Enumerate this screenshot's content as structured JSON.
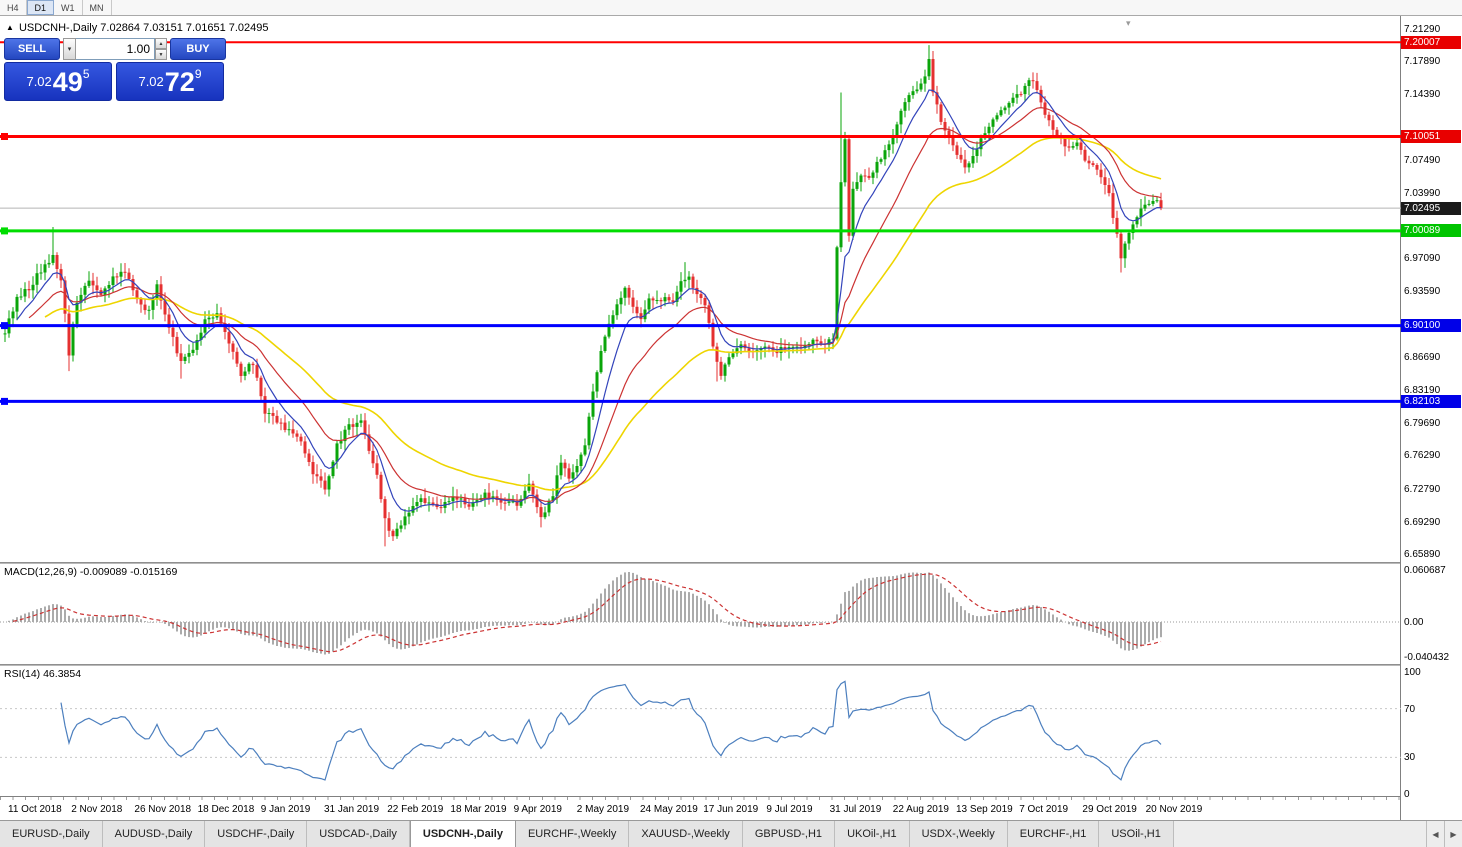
{
  "toolbar": {
    "timeframes": [
      {
        "label": "H4",
        "active": false
      },
      {
        "label": "D1",
        "active": true
      },
      {
        "label": "W1",
        "active": false
      },
      {
        "label": "MN",
        "active": false
      }
    ]
  },
  "chart": {
    "marker": "▲",
    "symbol": "USDCNH-,Daily",
    "ohlc": "7.02864 7.03151 7.01651 7.02495"
  },
  "trade_panel": {
    "sell": "SELL",
    "buy": "BUY",
    "volume": "1.00",
    "bid": {
      "base": "7.02",
      "pips": "49",
      "point": "5"
    },
    "ask": {
      "base": "7.02",
      "pips": "72",
      "point": "9"
    }
  },
  "price_axis": {
    "ticks": [
      "7.21290",
      "7.17890",
      "7.14390",
      "7.07490",
      "7.03990",
      "6.97090",
      "6.93590",
      "6.86690",
      "6.83190",
      "6.79690",
      "6.76290",
      "6.72790",
      "6.69290",
      "6.65890"
    ],
    "badges": [
      {
        "value": "7.20007",
        "color": "#E80000",
        "current": false
      },
      {
        "value": "7.10051",
        "color": "#E80000",
        "current": false
      },
      {
        "value": "7.02495",
        "color": "#1A1A1A",
        "current": true
      },
      {
        "value": "7.00089",
        "color": "#00C400",
        "current": false
      },
      {
        "value": "6.90100",
        "color": "#0000E8",
        "current": false
      },
      {
        "value": "6.82103",
        "color": "#0000E8",
        "current": false
      }
    ]
  },
  "hlines": [
    {
      "price": 7.20007,
      "color": "#FF0000",
      "w": 2,
      "marker": false
    },
    {
      "price": 7.10051,
      "color": "#FF0000",
      "w": 3,
      "marker": true
    },
    {
      "price": 7.00089,
      "color": "#00DD00",
      "w": 3,
      "marker": true
    },
    {
      "price": 6.901,
      "color": "#0000FF",
      "w": 3,
      "marker": true
    },
    {
      "price": 6.82103,
      "color": "#0000FF",
      "w": 3,
      "marker": true
    }
  ],
  "current_price": 7.02495,
  "macd": {
    "label": "MACD(12,26,9) -0.009089 -0.015169",
    "axis": [
      "0.060687",
      "0.00",
      "-0.040432"
    ]
  },
  "rsi": {
    "label": "RSI(14) 46.3854",
    "axis": [
      "100",
      "70",
      "30",
      "0"
    ],
    "levels": [
      70,
      30
    ]
  },
  "date_axis": {
    "labels": [
      "11 Oct 2018",
      "2 Nov 2018",
      "26 Nov 2018",
      "18 Dec 2018",
      "9 Jan 2019",
      "31 Jan 2019",
      "22 Feb 2019",
      "18 Mar 2019",
      "9 Apr 2019",
      "2 May 2019",
      "24 May 2019",
      "17 Jun 2019",
      "9 Jul 2019",
      "31 Jul 2019",
      "22 Aug 2019",
      "13 Sep 2019",
      "7 Oct 2019",
      "29 Oct 2019",
      "20 Nov 2019"
    ]
  },
  "tabs": {
    "items": [
      "EURUSD-,Daily",
      "AUDUSD-,Daily",
      "USDCHF-,Daily",
      "USDCAD-,Daily",
      "USDCNH-,Daily",
      "EURCHF-,Weekly",
      "XAUUSD-,Weekly",
      "GBPUSD-,H1",
      "UKOil-,H1",
      "USDX-,Weekly",
      "EURCHF-,H1",
      "USOil-,H1"
    ],
    "active_index": 4
  },
  "chart_data": {
    "type": "candlestick",
    "symbol": "USDCNH",
    "timeframe": "Daily",
    "bars": 290,
    "price_range": [
      6.6589,
      7.2129
    ],
    "colors": {
      "up": "#0AA50A",
      "down": "#E53030",
      "ma_blue": "#3344BB",
      "ma_red": "#CC3333",
      "ma_yellow": "#EED500",
      "macd_hist": "#ABABAB",
      "macd_signal": "#CC3333",
      "rsi_line": "#4C7FBE"
    },
    "ma_periods": {
      "blue": 8,
      "red": 20,
      "yellow": 45
    },
    "close_keypoints": [
      [
        0,
        6.895
      ],
      [
        3,
        6.93
      ],
      [
        6,
        6.94
      ],
      [
        9,
        6.96
      ],
      [
        12,
        6.975
      ],
      [
        14,
        6.95
      ],
      [
        16,
        6.872
      ],
      [
        18,
        6.928
      ],
      [
        21,
        6.95
      ],
      [
        24,
        6.935
      ],
      [
        27,
        6.952
      ],
      [
        30,
        6.958
      ],
      [
        33,
        6.93
      ],
      [
        36,
        6.915
      ],
      [
        38,
        6.942
      ],
      [
        41,
        6.9
      ],
      [
        44,
        6.862
      ],
      [
        47,
        6.875
      ],
      [
        50,
        6.905
      ],
      [
        53,
        6.915
      ],
      [
        56,
        6.885
      ],
      [
        59,
        6.85
      ],
      [
        62,
        6.862
      ],
      [
        65,
        6.81
      ],
      [
        68,
        6.8
      ],
      [
        71,
        6.79
      ],
      [
        74,
        6.778
      ],
      [
        77,
        6.745
      ],
      [
        80,
        6.73
      ],
      [
        83,
        6.775
      ],
      [
        86,
        6.795
      ],
      [
        89,
        6.8
      ],
      [
        91,
        6.77
      ],
      [
        93,
        6.745
      ],
      [
        95,
        6.695
      ],
      [
        97,
        6.678
      ],
      [
        100,
        6.7
      ],
      [
        104,
        6.718
      ],
      [
        108,
        6.708
      ],
      [
        112,
        6.722
      ],
      [
        116,
        6.712
      ],
      [
        120,
        6.722
      ],
      [
        124,
        6.716
      ],
      [
        128,
        6.712
      ],
      [
        131,
        6.732
      ],
      [
        134,
        6.698
      ],
      [
        137,
        6.722
      ],
      [
        139,
        6.758
      ],
      [
        141,
        6.738
      ],
      [
        143,
        6.75
      ],
      [
        145,
        6.775
      ],
      [
        147,
        6.83
      ],
      [
        149,
        6.875
      ],
      [
        151,
        6.9
      ],
      [
        153,
        6.925
      ],
      [
        155,
        6.938
      ],
      [
        157,
        6.92
      ],
      [
        159,
        6.908
      ],
      [
        161,
        6.93
      ],
      [
        163,
        6.925
      ],
      [
        165,
        6.932
      ],
      [
        167,
        6.928
      ],
      [
        169,
        6.948
      ],
      [
        171,
        6.952
      ],
      [
        173,
        6.932
      ],
      [
        175,
        6.925
      ],
      [
        177,
        6.878
      ],
      [
        179,
        6.85
      ],
      [
        181,
        6.868
      ],
      [
        184,
        6.882
      ],
      [
        187,
        6.872
      ],
      [
        190,
        6.88
      ],
      [
        193,
        6.874
      ],
      [
        196,
        6.88
      ],
      [
        199,
        6.876
      ],
      [
        202,
        6.884
      ],
      [
        205,
        6.878
      ],
      [
        207,
        6.89
      ],
      [
        208,
        6.985
      ],
      [
        209,
        7.055
      ],
      [
        210,
        7.1
      ],
      [
        211,
        6.995
      ],
      [
        212,
        7.045
      ],
      [
        214,
        7.062
      ],
      [
        216,
        7.055
      ],
      [
        218,
        7.072
      ],
      [
        220,
        7.085
      ],
      [
        222,
        7.1
      ],
      [
        224,
        7.128
      ],
      [
        226,
        7.142
      ],
      [
        228,
        7.15
      ],
      [
        230,
        7.165
      ],
      [
        231,
        7.182
      ],
      [
        232,
        7.15
      ],
      [
        234,
        7.118
      ],
      [
        236,
        7.1
      ],
      [
        238,
        7.082
      ],
      [
        240,
        7.068
      ],
      [
        242,
        7.082
      ],
      [
        244,
        7.098
      ],
      [
        246,
        7.112
      ],
      [
        248,
        7.122
      ],
      [
        250,
        7.132
      ],
      [
        252,
        7.14
      ],
      [
        254,
        7.148
      ],
      [
        256,
        7.162
      ],
      [
        258,
        7.15
      ],
      [
        260,
        7.125
      ],
      [
        262,
        7.108
      ],
      [
        264,
        7.096
      ],
      [
        266,
        7.088
      ],
      [
        268,
        7.092
      ],
      [
        270,
        7.078
      ],
      [
        272,
        7.068
      ],
      [
        274,
        7.058
      ],
      [
        276,
        7.04
      ],
      [
        278,
        6.995
      ],
      [
        279,
        6.972
      ],
      [
        280,
        6.985
      ],
      [
        282,
        7.008
      ],
      [
        284,
        7.022
      ],
      [
        286,
        7.032
      ],
      [
        288,
        7.035
      ],
      [
        289,
        7.025
      ]
    ],
    "spikes": [
      {
        "i": 12,
        "h": 7.005
      },
      {
        "i": 16,
        "l": 6.853
      },
      {
        "i": 44,
        "l": 6.845
      },
      {
        "i": 95,
        "l": 6.668
      },
      {
        "i": 134,
        "l": 6.688
      },
      {
        "i": 170,
        "h": 6.968
      },
      {
        "i": 178,
        "l": 6.842
      },
      {
        "i": 209,
        "h": 7.147
      },
      {
        "i": 231,
        "h": 7.197
      },
      {
        "i": 279,
        "l": 6.957
      }
    ]
  }
}
